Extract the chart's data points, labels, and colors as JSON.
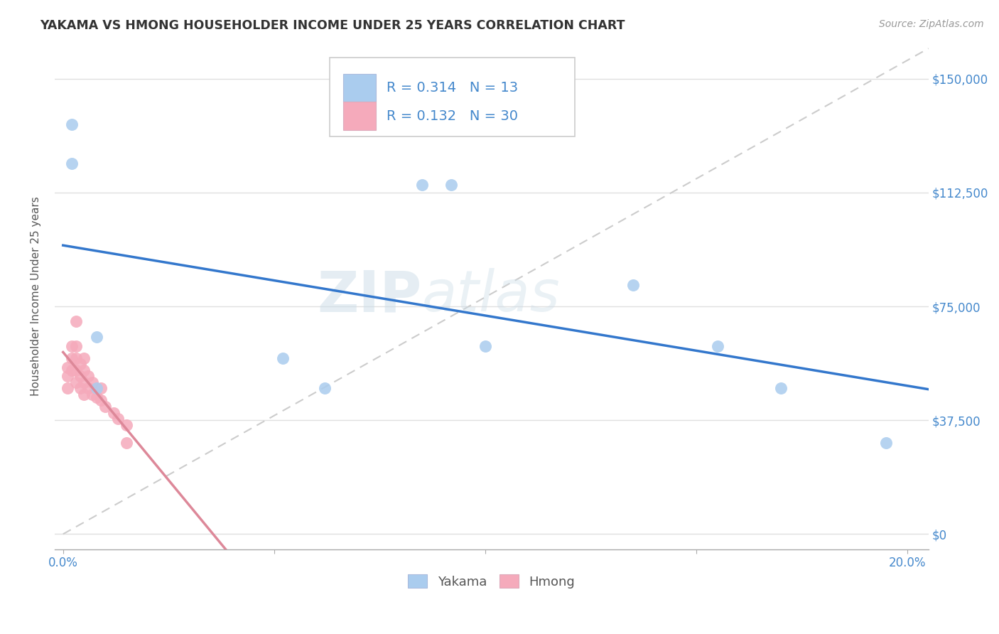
{
  "title": "YAKAMA VS HMONG HOUSEHOLDER INCOME UNDER 25 YEARS CORRELATION CHART",
  "source": "Source: ZipAtlas.com",
  "ylabel": "Householder Income Under 25 years",
  "xlabel": "",
  "xlim": [
    -0.002,
    0.205
  ],
  "ylim": [
    -5000,
    162000
  ],
  "yticks": [
    0,
    37500,
    75000,
    112500,
    150000
  ],
  "ytick_labels": [
    "$0",
    "$37,500",
    "$75,000",
    "$112,500",
    "$150,000"
  ],
  "xticks": [
    0.0,
    0.05,
    0.1,
    0.15,
    0.2
  ],
  "xtick_labels": [
    "0.0%",
    "",
    "",
    "",
    "20.0%"
  ],
  "watermark_zip": "ZIP",
  "watermark_atlas": "atlas",
  "legend_yakama_R": "0.314",
  "legend_yakama_N": "13",
  "legend_hmong_R": "0.132",
  "legend_hmong_N": "30",
  "yakama_color": "#aaccee",
  "hmong_color": "#f5aabb",
  "yakama_line_color": "#3377cc",
  "hmong_line_color": "#dd8899",
  "diagonal_color": "#cccccc",
  "title_color": "#333333",
  "axis_label_color": "#555555",
  "tick_color": "#4488cc",
  "legend_text_color": "#4488cc",
  "background_color": "#ffffff",
  "grid_color": "#e0e0e0",
  "yakama_x": [
    0.002,
    0.002,
    0.008,
    0.008,
    0.052,
    0.062,
    0.085,
    0.092,
    0.1,
    0.135,
    0.155,
    0.17,
    0.195
  ],
  "yakama_y": [
    135000,
    122000,
    65000,
    48000,
    58000,
    48000,
    115000,
    115000,
    62000,
    82000,
    62000,
    48000,
    30000
  ],
  "hmong_x": [
    0.001,
    0.001,
    0.001,
    0.002,
    0.002,
    0.002,
    0.003,
    0.003,
    0.003,
    0.003,
    0.003,
    0.004,
    0.004,
    0.004,
    0.005,
    0.005,
    0.005,
    0.005,
    0.006,
    0.006,
    0.007,
    0.007,
    0.008,
    0.009,
    0.009,
    0.01,
    0.012,
    0.013,
    0.015,
    0.015
  ],
  "hmong_y": [
    55000,
    52000,
    48000,
    62000,
    58000,
    54000,
    70000,
    62000,
    58000,
    54000,
    50000,
    56000,
    52000,
    48000,
    58000,
    54000,
    50000,
    46000,
    52000,
    48000,
    50000,
    46000,
    45000,
    48000,
    44000,
    42000,
    40000,
    38000,
    36000,
    30000
  ]
}
